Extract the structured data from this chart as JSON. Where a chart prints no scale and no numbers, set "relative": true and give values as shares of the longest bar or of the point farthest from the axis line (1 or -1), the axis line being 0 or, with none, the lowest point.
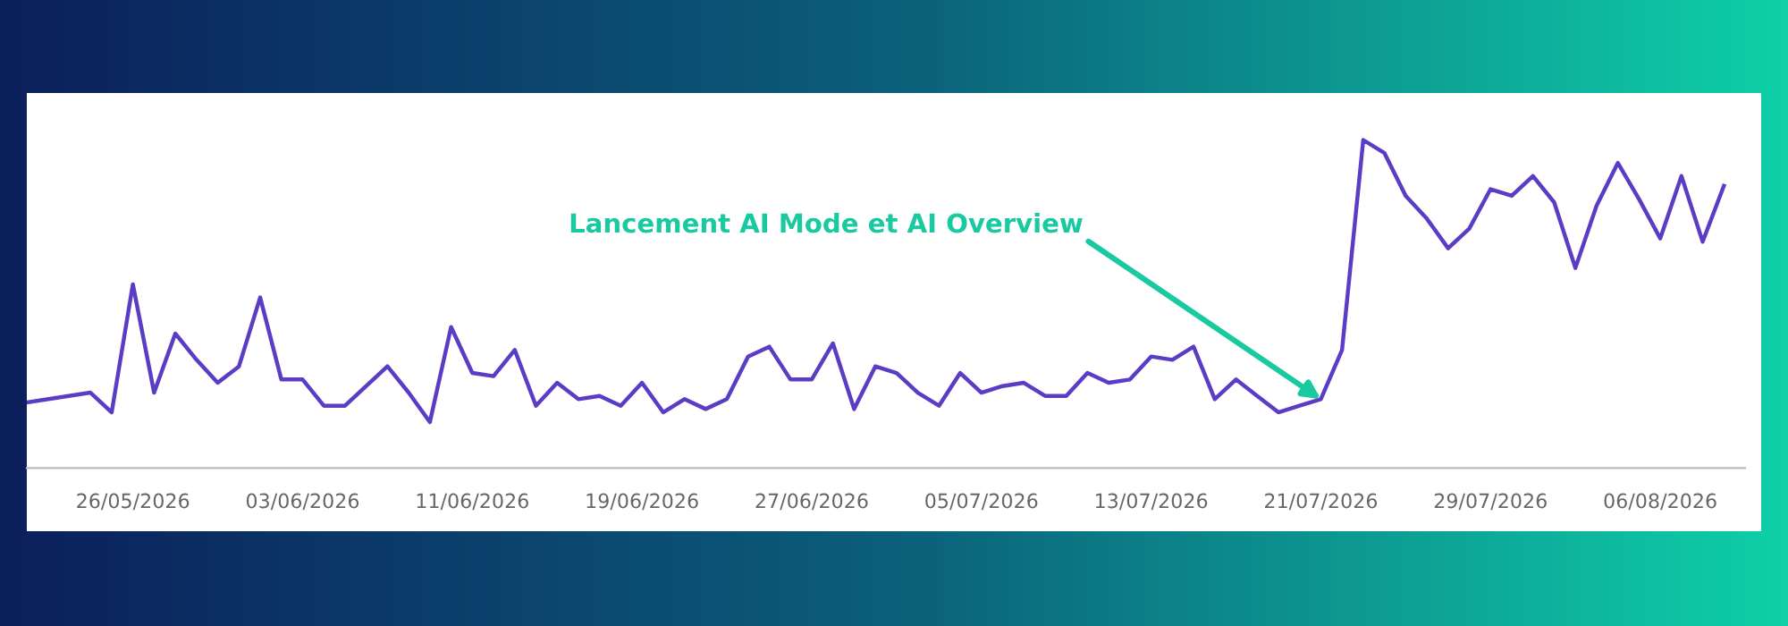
{
  "chart_data": {
    "type": "line",
    "relative": true,
    "x": [
      "2026-05-21",
      "2026-05-24",
      "2026-05-25",
      "2026-05-26",
      "2026-05-27",
      "2026-05-28",
      "2026-05-29",
      "2026-05-30",
      "2026-05-31",
      "2026-06-01",
      "2026-06-02",
      "2026-06-03",
      "2026-06-04",
      "2026-06-05",
      "2026-06-06",
      "2026-06-07",
      "2026-06-08",
      "2026-06-09",
      "2026-06-10",
      "2026-06-11",
      "2026-06-12",
      "2026-06-13",
      "2026-06-14",
      "2026-06-15",
      "2026-06-16",
      "2026-06-17",
      "2026-06-18",
      "2026-06-19",
      "2026-06-20",
      "2026-06-21",
      "2026-06-22",
      "2026-06-23",
      "2026-06-24",
      "2026-06-25",
      "2026-06-26",
      "2026-06-27",
      "2026-06-28",
      "2026-06-29",
      "2026-06-30",
      "2026-07-01",
      "2026-07-02",
      "2026-07-03",
      "2026-07-04",
      "2026-07-05",
      "2026-07-06",
      "2026-07-07",
      "2026-07-08",
      "2026-07-09",
      "2026-07-10",
      "2026-07-11",
      "2026-07-12",
      "2026-07-13",
      "2026-07-14",
      "2026-07-15",
      "2026-07-16",
      "2026-07-17",
      "2026-07-18",
      "2026-07-19",
      "2026-07-20",
      "2026-07-21",
      "2026-07-22",
      "2026-07-23",
      "2026-07-24",
      "2026-07-25",
      "2026-07-26",
      "2026-07-27",
      "2026-07-28",
      "2026-07-29",
      "2026-07-30",
      "2026-07-31",
      "2026-08-01",
      "2026-08-02",
      "2026-08-03",
      "2026-08-04",
      "2026-08-05",
      "2026-08-06",
      "2026-08-07",
      "2026-08-08",
      "2026-08-09"
    ],
    "series": [
      {
        "color": "#5b3cc4",
        "values": [
          0.2,
          0.23,
          0.17,
          0.56,
          0.23,
          0.41,
          0.33,
          0.26,
          0.31,
          0.52,
          0.27,
          0.27,
          0.19,
          0.19,
          0.25,
          0.31,
          0.23,
          0.14,
          0.43,
          0.29,
          0.28,
          0.36,
          0.19,
          0.26,
          0.21,
          0.22,
          0.19,
          0.26,
          0.17,
          0.21,
          0.18,
          0.21,
          0.34,
          0.37,
          0.27,
          0.27,
          0.38,
          0.18,
          0.31,
          0.29,
          0.23,
          0.19,
          0.29,
          0.23,
          0.25,
          0.26,
          0.22,
          0.22,
          0.29,
          0.26,
          0.27,
          0.34,
          0.33,
          0.37,
          0.21,
          0.27,
          0.22,
          0.17,
          0.19,
          0.21,
          0.36,
          1,
          0.96,
          0.83,
          0.76,
          0.67,
          0.73,
          0.85,
          0.83,
          0.89,
          0.81,
          0.61,
          0.8,
          0.93,
          0.82,
          0.7,
          0.89,
          0.69,
          0.86
        ]
      }
    ],
    "xlim": [
      "2026-05-21",
      "2026-08-10"
    ],
    "xticks": [
      {
        "value": "2026-05-26",
        "label": "26/05/2026"
      },
      {
        "value": "2026-06-03",
        "label": "03/06/2026"
      },
      {
        "value": "2026-06-11",
        "label": "11/06/2026"
      },
      {
        "value": "2026-06-19",
        "label": "19/06/2026"
      },
      {
        "value": "2026-06-27",
        "label": "27/06/2026"
      },
      {
        "value": "2026-07-05",
        "label": "05/07/2026"
      },
      {
        "value": "2026-07-13",
        "label": "13/07/2026"
      },
      {
        "value": "2026-07-21",
        "label": "21/07/2026"
      },
      {
        "value": "2026-07-29",
        "label": "29/07/2026"
      },
      {
        "value": "2026-08-06",
        "label": "06/08/2026"
      }
    ],
    "annotations": [
      {
        "text": "Lancement AI Mode et AI Overview",
        "x": "2026-07-21",
        "y": 0.21
      }
    ],
    "marker": "none",
    "line_style": "solid"
  }
}
